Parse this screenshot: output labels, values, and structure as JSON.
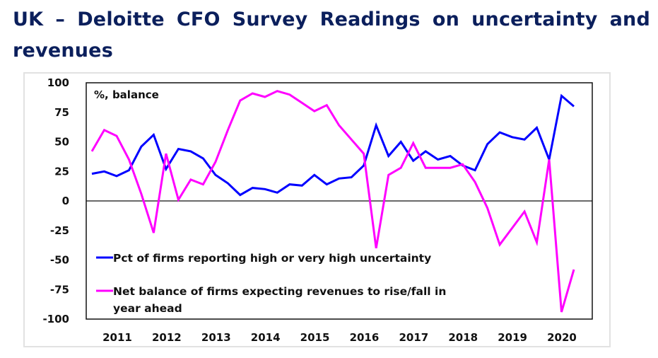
{
  "header": {
    "title": "UK – Deloitte CFO Survey Readings on uncertainty and revenues"
  },
  "chart_data": {
    "type": "line",
    "title": "UK – Deloitte CFO Survey Readings on uncertainty and revenues",
    "annotation": "%, balance",
    "xlabel": "",
    "ylabel": "",
    "ylim": [
      -100,
      100
    ],
    "yticks": [
      "100",
      "75",
      "50",
      "25",
      "0",
      "-25",
      "-50",
      "-75",
      "-100"
    ],
    "ytick_values": [
      100,
      75,
      50,
      25,
      0,
      -25,
      -50,
      -75,
      -100
    ],
    "xtick_labels": [
      "2011",
      "2012",
      "2013",
      "2014",
      "2015",
      "2016",
      "2017",
      "2018",
      "2019",
      "2020"
    ],
    "frequency": "quarterly",
    "grid": false,
    "zero_line": true,
    "legend_position": "bottom-left (inside plot)",
    "series": [
      {
        "name": "Pct of firms reporting high or very high uncertainty",
        "color": "#0000ff",
        "values": [
          23,
          25,
          21,
          26,
          46,
          56,
          27,
          44,
          42,
          36,
          22,
          15,
          5,
          11,
          10,
          7,
          14,
          13,
          22,
          14,
          19,
          20,
          30,
          64,
          38,
          50,
          34,
          42,
          35,
          38,
          30,
          26,
          48,
          58,
          54,
          52,
          62,
          35,
          89,
          80
        ]
      },
      {
        "name": "Net balance of firms expecting revenues to rise/fall in year ahead",
        "legend_lines": [
          "Net balance of firms expecting revenues to rise/fall in",
          "year ahead"
        ],
        "color": "#ff00ff",
        "values": [
          42,
          60,
          55,
          35,
          6,
          -27,
          40,
          1,
          18,
          14,
          33,
          60,
          85,
          91,
          88,
          93,
          90,
          83,
          76,
          81,
          64,
          52,
          40,
          -40,
          22,
          28,
          49,
          28,
          28,
          28,
          31,
          16,
          -6,
          -37,
          -23,
          -9,
          -35,
          35,
          -94,
          -58
        ]
      }
    ]
  }
}
